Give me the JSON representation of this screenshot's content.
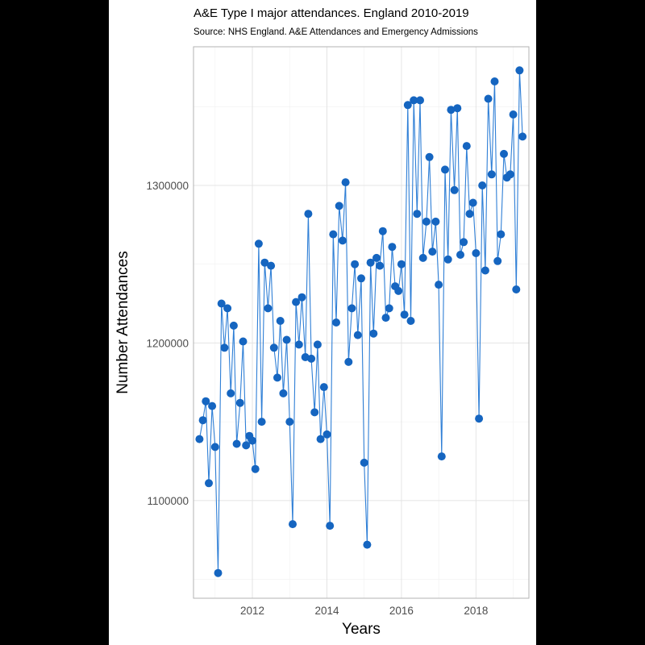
{
  "chart_data": {
    "type": "line",
    "title": "A&E Type I major attendances. England 2010-2019",
    "subtitle": "Source: NHS England. A&E Attendances and Emergency Admissions",
    "xlabel": "Years",
    "ylabel": "Number Attendances",
    "x_ticks": [
      2012,
      2014,
      2016,
      2018
    ],
    "y_ticks": [
      1100000,
      1200000,
      1300000
    ],
    "x_tick_labels": [
      "2012",
      "2014",
      "2016",
      "2018"
    ],
    "y_tick_labels": [
      "1100000",
      "1200000",
      "1300000"
    ],
    "xlim": [
      2010.42,
      2019.42
    ],
    "ylim": [
      1038000,
      1388000
    ],
    "grid": true,
    "series_color": "#1565c0",
    "line_color": "#2f7fd6",
    "series": [
      {
        "values": [
          [
            2010.58,
            1139000
          ],
          [
            2010.67,
            1151000
          ],
          [
            2010.75,
            1163000
          ],
          [
            2010.83,
            1111000
          ],
          [
            2010.92,
            1160000
          ],
          [
            2011.0,
            1134000
          ],
          [
            2011.08,
            1054000
          ],
          [
            2011.17,
            1225000
          ],
          [
            2011.25,
            1197000
          ],
          [
            2011.33,
            1222000
          ],
          [
            2011.42,
            1168000
          ],
          [
            2011.5,
            1211000
          ],
          [
            2011.58,
            1136000
          ],
          [
            2011.67,
            1162000
          ],
          [
            2011.75,
            1201000
          ],
          [
            2011.83,
            1135000
          ],
          [
            2011.92,
            1141000
          ],
          [
            2012.0,
            1138000
          ],
          [
            2012.08,
            1120000
          ],
          [
            2012.17,
            1263000
          ],
          [
            2012.25,
            1150000
          ],
          [
            2012.33,
            1251000
          ],
          [
            2012.42,
            1222000
          ],
          [
            2012.5,
            1249000
          ],
          [
            2012.58,
            1197000
          ],
          [
            2012.67,
            1178000
          ],
          [
            2012.75,
            1214000
          ],
          [
            2012.83,
            1168000
          ],
          [
            2012.92,
            1202000
          ],
          [
            2013.0,
            1150000
          ],
          [
            2013.08,
            1085000
          ],
          [
            2013.17,
            1226000
          ],
          [
            2013.25,
            1199000
          ],
          [
            2013.33,
            1229000
          ],
          [
            2013.42,
            1191000
          ],
          [
            2013.5,
            1282000
          ],
          [
            2013.58,
            1190000
          ],
          [
            2013.67,
            1156000
          ],
          [
            2013.75,
            1199000
          ],
          [
            2013.83,
            1139000
          ],
          [
            2013.92,
            1172000
          ],
          [
            2014.0,
            1142000
          ],
          [
            2014.08,
            1084000
          ],
          [
            2014.17,
            1269000
          ],
          [
            2014.25,
            1213000
          ],
          [
            2014.33,
            1287000
          ],
          [
            2014.42,
            1265000
          ],
          [
            2014.5,
            1302000
          ],
          [
            2014.58,
            1188000
          ],
          [
            2014.67,
            1222000
          ],
          [
            2014.75,
            1250000
          ],
          [
            2014.83,
            1205000
          ],
          [
            2014.92,
            1241000
          ],
          [
            2015.0,
            1124000
          ],
          [
            2015.08,
            1072000
          ],
          [
            2015.17,
            1251000
          ],
          [
            2015.25,
            1206000
          ],
          [
            2015.33,
            1254000
          ],
          [
            2015.42,
            1249000
          ],
          [
            2015.5,
            1271000
          ],
          [
            2015.58,
            1216000
          ],
          [
            2015.67,
            1222000
          ],
          [
            2015.75,
            1261000
          ],
          [
            2015.83,
            1236000
          ],
          [
            2015.92,
            1233000
          ],
          [
            2016.0,
            1250000
          ],
          [
            2016.08,
            1218000
          ],
          [
            2016.17,
            1351000
          ],
          [
            2016.25,
            1214000
          ],
          [
            2016.33,
            1354000
          ],
          [
            2016.42,
            1282000
          ],
          [
            2016.5,
            1354000
          ],
          [
            2016.58,
            1254000
          ],
          [
            2016.67,
            1277000
          ],
          [
            2016.75,
            1318000
          ],
          [
            2016.83,
            1258000
          ],
          [
            2016.92,
            1277000
          ],
          [
            2017.0,
            1237000
          ],
          [
            2017.08,
            1128000
          ],
          [
            2017.17,
            1310000
          ],
          [
            2017.25,
            1253000
          ],
          [
            2017.33,
            1348000
          ],
          [
            2017.42,
            1297000
          ],
          [
            2017.5,
            1349000
          ],
          [
            2017.58,
            1256000
          ],
          [
            2017.67,
            1264000
          ],
          [
            2017.75,
            1325000
          ],
          [
            2017.83,
            1282000
          ],
          [
            2017.92,
            1289000
          ],
          [
            2018.0,
            1257000
          ],
          [
            2018.08,
            1152000
          ],
          [
            2018.17,
            1300000
          ],
          [
            2018.25,
            1246000
          ],
          [
            2018.33,
            1355000
          ],
          [
            2018.42,
            1307000
          ],
          [
            2018.5,
            1366000
          ],
          [
            2018.58,
            1252000
          ],
          [
            2018.67,
            1269000
          ],
          [
            2018.75,
            1320000
          ],
          [
            2018.83,
            1305000
          ],
          [
            2018.92,
            1307000
          ],
          [
            2019.0,
            1345000
          ],
          [
            2019.08,
            1234000
          ],
          [
            2019.17,
            1373000
          ],
          [
            2019.25,
            1331000
          ]
        ]
      }
    ]
  }
}
